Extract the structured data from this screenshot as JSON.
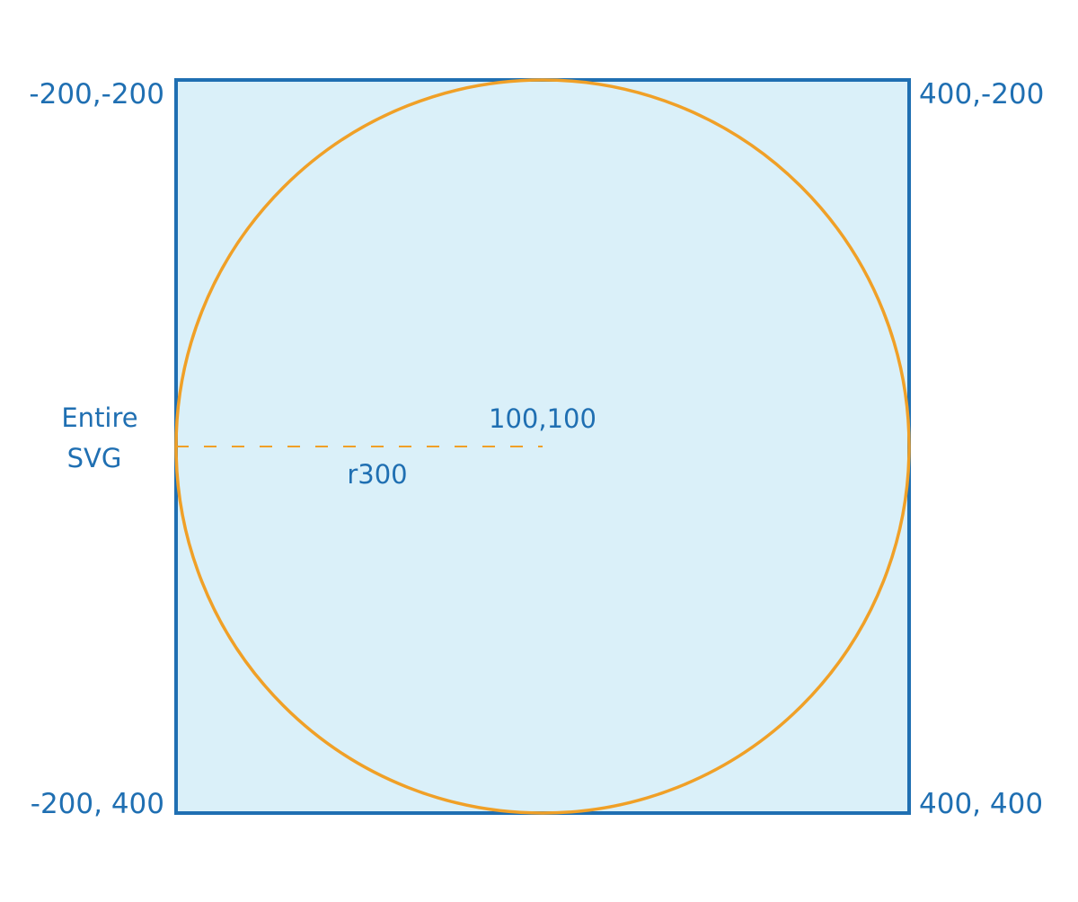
{
  "diagram": {
    "colors": {
      "box_stroke": "#1f6fb2",
      "box_fill": "#daf0f9",
      "circle_stroke": "#f0a027",
      "text": "#1f6fb2"
    },
    "corners": {
      "top_left": "-200,-200",
      "top_right": "400,-200",
      "bottom_left": "-200, 400",
      "bottom_right": "400, 400"
    },
    "side_label": {
      "line1": "Entire",
      "line2": "SVG"
    },
    "center_label": "100,100",
    "radius_label": "r300"
  }
}
